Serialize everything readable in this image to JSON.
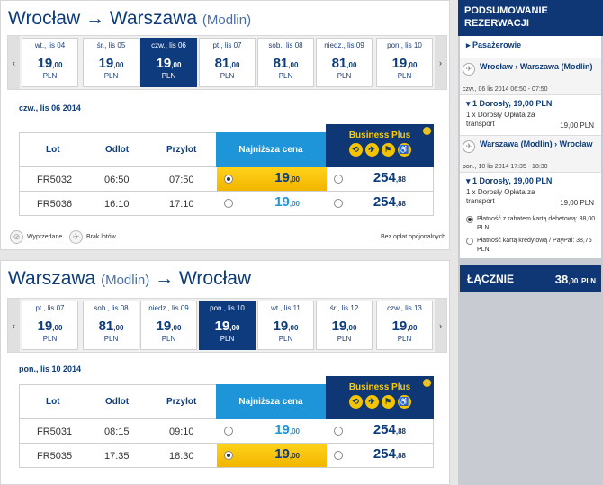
{
  "outbound": {
    "from": "Wrocław",
    "arrow": "→",
    "to": "Warszawa",
    "to_airport": "(Modlin)",
    "days": [
      {
        "label": "wt., lis 04",
        "price": "19",
        "cents": ",00",
        "currency": "PLN",
        "selected": false
      },
      {
        "label": "śr., lis 05",
        "price": "19",
        "cents": ",00",
        "currency": "PLN",
        "selected": false
      },
      {
        "label": "czw., lis 06",
        "price": "19",
        "cents": ",00",
        "currency": "PLN",
        "selected": true
      },
      {
        "label": "pt., lis 07",
        "price": "81",
        "cents": ",00",
        "currency": "PLN",
        "selected": false
      },
      {
        "label": "sob., lis 08",
        "price": "81",
        "cents": ",00",
        "currency": "PLN",
        "selected": false
      },
      {
        "label": "niedz., lis 09",
        "price": "81",
        "cents": ",00",
        "currency": "PLN",
        "selected": false
      },
      {
        "label": "pon., lis 10",
        "price": "19",
        "cents": ",00",
        "currency": "PLN",
        "selected": false
      }
    ],
    "selected_date": "czw., lis 06 2014",
    "flights": [
      {
        "flight": "FR5032",
        "departure": "06:50",
        "arrival": "07:50",
        "lowest": "19",
        "lowest_cents": ",00",
        "lowest_selected": true,
        "business": "254",
        "business_cents": ",88"
      },
      {
        "flight": "FR5036",
        "departure": "16:10",
        "arrival": "17:10",
        "lowest": "19",
        "lowest_cents": ",00",
        "lowest_selected": false,
        "business": "254",
        "business_cents": ",88"
      }
    ]
  },
  "return": {
    "from": "Warszawa",
    "from_airport": "(Modlin)",
    "arrow": "→",
    "to": "Wrocław",
    "days": [
      {
        "label": "pt., lis 07",
        "price": "19",
        "cents": ",00",
        "currency": "PLN",
        "selected": false
      },
      {
        "label": "sob., lis 08",
        "price": "81",
        "cents": ",00",
        "currency": "PLN",
        "selected": false
      },
      {
        "label": "niedz., lis 09",
        "price": "19",
        "cents": ",00",
        "currency": "PLN",
        "selected": false
      },
      {
        "label": "pon., lis 10",
        "price": "19",
        "cents": ",00",
        "currency": "PLN",
        "selected": true
      },
      {
        "label": "wt., lis 11",
        "price": "19",
        "cents": ",00",
        "currency": "PLN",
        "selected": false
      },
      {
        "label": "śr., lis 12",
        "price": "19",
        "cents": ",00",
        "currency": "PLN",
        "selected": false
      },
      {
        "label": "czw., lis 13",
        "price": "19",
        "cents": ",00",
        "currency": "PLN",
        "selected": false
      }
    ],
    "selected_date": "pon., lis 10 2014",
    "flights": [
      {
        "flight": "FR5031",
        "departure": "08:15",
        "arrival": "09:10",
        "lowest": "19",
        "lowest_cents": ",00",
        "lowest_selected": false,
        "business": "254",
        "business_cents": ",88"
      },
      {
        "flight": "FR5035",
        "departure": "17:35",
        "arrival": "18:30",
        "lowest": "19",
        "lowest_cents": ",00",
        "lowest_selected": true,
        "business": "254",
        "business_cents": ",88"
      }
    ]
  },
  "table_headers": {
    "flight": "Lot",
    "departure": "Odlot",
    "arrival": "Przylot",
    "lowest": "Najniższa cena",
    "business": "Business Plus"
  },
  "legend": {
    "sold_out": "Wyprzedane",
    "no_flights": "Brak lotów",
    "no_fees": "Bez opłat opcjonalnych"
  },
  "nav": {
    "prev": "‹",
    "next": "›"
  },
  "summary": {
    "title": "PODSUMOWANIE REZERWACJI",
    "passengers": "Pasażerowie",
    "seg1_route": "Wrocław › Warszawa (Modlin)",
    "seg1_date": "czw., 06 lis 2014 06:50 - 07:50",
    "seg1_head": "1 Dorosły, 19,00 PLN",
    "seg1_line": "1 x Dorosły Opłata za transport",
    "seg1_amount": "19,00 PLN",
    "seg2_route": "Warszawa (Modlin) › Wrocław",
    "seg2_date": "pon., 10 lis 2014 17:35 - 18:30",
    "seg2_head": "1 Dorosły, 19,00 PLN",
    "seg2_line": "1 x Dorosły Opłata za transport",
    "seg2_amount": "19,00 PLN",
    "pay1": "Płatność z rabatem kartą debetową: 38,00 PLN",
    "pay2": "Płatność kartą kredytową / PayPal: 38,76 PLN",
    "total_label": "ŁĄCZNIE",
    "total_value": "38",
    "total_cents": ",00",
    "total_currency": "PLN"
  },
  "colors": {
    "brand_navy": "#0f3775",
    "accent_blue": "#1e95d9",
    "highlight_yellow": "#ffd21a"
  }
}
